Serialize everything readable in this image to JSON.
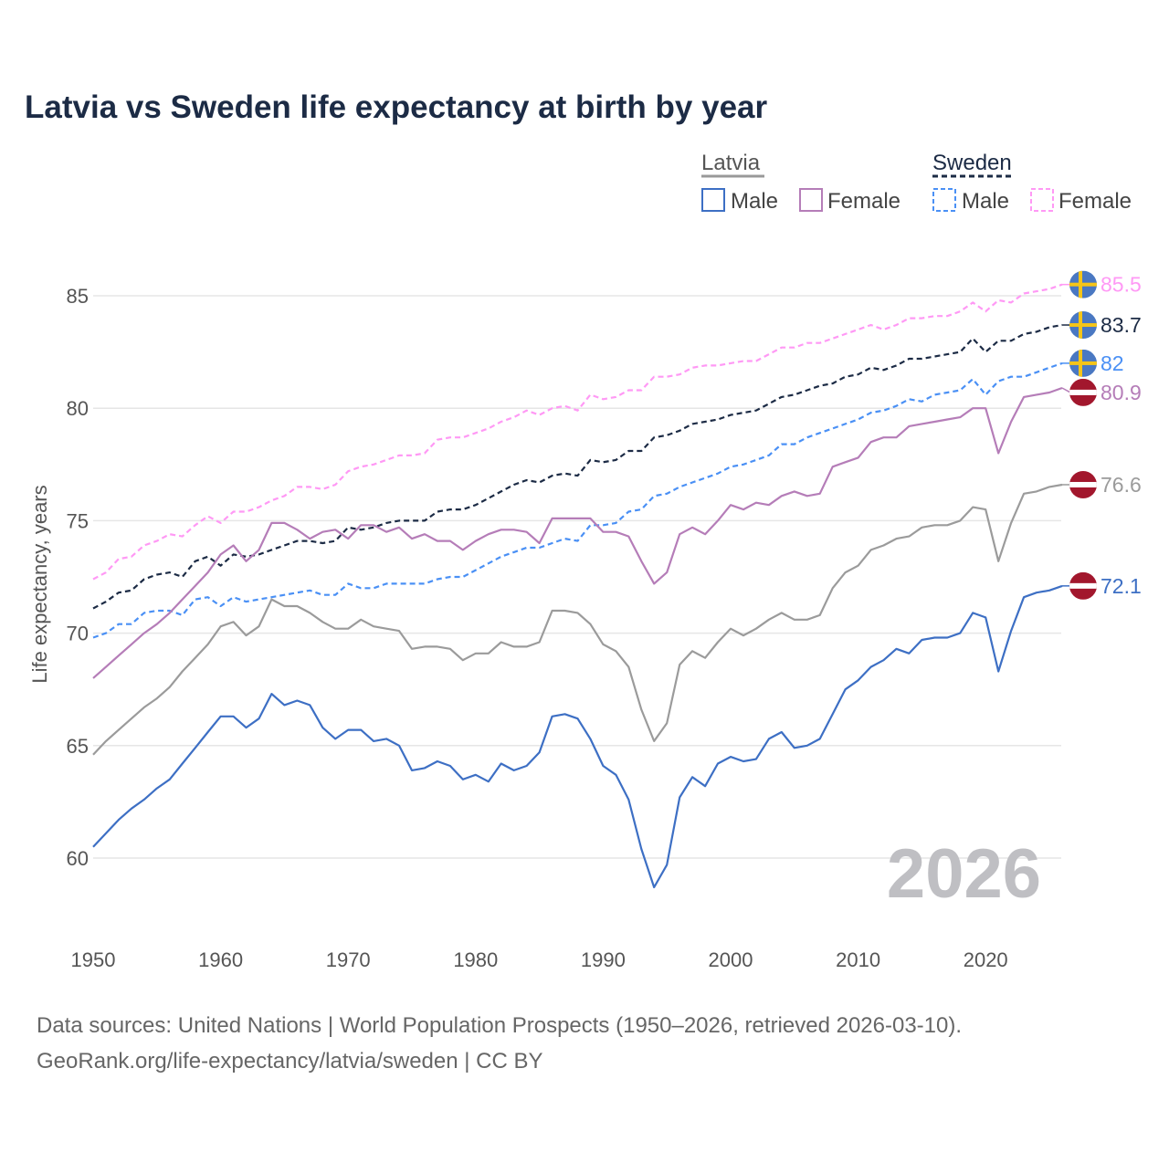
{
  "chart_data": {
    "type": "line",
    "title": "Latvia vs Sweden life expectancy at birth by year",
    "xlabel": "",
    "ylabel": "Life expectancy, years",
    "xlim": [
      1950,
      2026
    ],
    "ylim": [
      58,
      86.5
    ],
    "x_ticks": [
      1950,
      1960,
      1970,
      1980,
      1990,
      2000,
      2010,
      2020
    ],
    "y_ticks": [
      60,
      65,
      70,
      75,
      80,
      85
    ],
    "grid": true,
    "legend_placement": "top-right",
    "legend": {
      "groups": [
        {
          "name": "Latvia",
          "items": [
            "Male",
            "Female"
          ]
        },
        {
          "name": "Sweden",
          "items": [
            "Male",
            "Female"
          ]
        }
      ]
    },
    "watermark_year": "2026",
    "x_start": 1950,
    "series": [
      {
        "name": "Sweden Female",
        "country": "Sweden",
        "color": "#ff99f5",
        "dashed": true,
        "end_label": "85.5",
        "values": [
          72.4,
          72.7,
          73.3,
          73.4,
          73.9,
          74.1,
          74.4,
          74.3,
          74.8,
          75.2,
          74.9,
          75.4,
          75.4,
          75.6,
          75.9,
          76.1,
          76.5,
          76.5,
          76.4,
          76.6,
          77.2,
          77.4,
          77.5,
          77.7,
          77.9,
          77.9,
          78.0,
          78.6,
          78.7,
          78.7,
          78.9,
          79.1,
          79.4,
          79.6,
          79.9,
          79.7,
          80.0,
          80.1,
          79.9,
          80.6,
          80.4,
          80.5,
          80.8,
          80.8,
          81.4,
          81.4,
          81.5,
          81.8,
          81.9,
          81.9,
          82.0,
          82.1,
          82.1,
          82.4,
          82.7,
          82.7,
          82.9,
          82.9,
          83.1,
          83.3,
          83.5,
          83.7,
          83.5,
          83.7,
          84.0,
          84.0,
          84.1,
          84.1,
          84.3,
          84.7,
          84.3,
          84.8,
          84.7,
          85.1,
          85.2,
          85.3,
          85.5
        ]
      },
      {
        "name": "Sweden",
        "country": "Sweden",
        "color": "#1c2b45",
        "dashed": true,
        "end_label": "83.7",
        "values": [
          71.1,
          71.4,
          71.8,
          71.9,
          72.4,
          72.6,
          72.7,
          72.5,
          73.2,
          73.4,
          73.0,
          73.5,
          73.4,
          73.5,
          73.7,
          73.9,
          74.1,
          74.1,
          74.0,
          74.1,
          74.7,
          74.6,
          74.7,
          74.9,
          75.0,
          75.0,
          75.0,
          75.4,
          75.5,
          75.5,
          75.7,
          76.0,
          76.3,
          76.6,
          76.8,
          76.7,
          77.0,
          77.1,
          77.0,
          77.7,
          77.6,
          77.7,
          78.1,
          78.1,
          78.7,
          78.8,
          79.0,
          79.3,
          79.4,
          79.5,
          79.7,
          79.8,
          79.9,
          80.2,
          80.5,
          80.6,
          80.8,
          81.0,
          81.1,
          81.4,
          81.5,
          81.8,
          81.7,
          81.9,
          82.2,
          82.2,
          82.3,
          82.4,
          82.5,
          83.1,
          82.5,
          83.0,
          83.0,
          83.3,
          83.4,
          83.6,
          83.7
        ]
      },
      {
        "name": "Sweden Male",
        "country": "Sweden",
        "color": "#4a90f5",
        "dashed": true,
        "end_label": "82",
        "values": [
          69.8,
          70.0,
          70.4,
          70.4,
          70.9,
          71.0,
          71.0,
          70.8,
          71.5,
          71.6,
          71.2,
          71.6,
          71.4,
          71.5,
          71.6,
          71.7,
          71.8,
          71.9,
          71.7,
          71.7,
          72.2,
          72.0,
          72.0,
          72.2,
          72.2,
          72.2,
          72.2,
          72.4,
          72.5,
          72.5,
          72.8,
          73.1,
          73.4,
          73.6,
          73.8,
          73.8,
          74.0,
          74.2,
          74.1,
          74.8,
          74.8,
          74.9,
          75.4,
          75.5,
          76.1,
          76.2,
          76.5,
          76.7,
          76.9,
          77.1,
          77.4,
          77.5,
          77.7,
          77.9,
          78.4,
          78.4,
          78.7,
          78.9,
          79.1,
          79.3,
          79.5,
          79.8,
          79.9,
          80.1,
          80.4,
          80.3,
          80.6,
          80.7,
          80.8,
          81.3,
          80.6,
          81.2,
          81.4,
          81.4,
          81.6,
          81.8,
          82.0
        ]
      },
      {
        "name": "Latvia Female",
        "country": "Latvia",
        "color": "#b57db8",
        "dashed": false,
        "end_label": "80.9",
        "values": [
          68.0,
          68.5,
          69.0,
          69.5,
          70.0,
          70.4,
          70.9,
          71.5,
          72.1,
          72.7,
          73.5,
          73.9,
          73.2,
          73.7,
          74.9,
          74.9,
          74.6,
          74.2,
          74.5,
          74.6,
          74.2,
          74.8,
          74.8,
          74.5,
          74.7,
          74.2,
          74.4,
          74.1,
          74.1,
          73.7,
          74.1,
          74.4,
          74.6,
          74.6,
          74.5,
          74.0,
          75.1,
          75.1,
          75.1,
          75.1,
          74.5,
          74.5,
          74.3,
          73.2,
          72.2,
          72.7,
          74.4,
          74.7,
          74.4,
          75.0,
          75.7,
          75.5,
          75.8,
          75.7,
          76.1,
          76.3,
          76.1,
          76.2,
          77.4,
          77.6,
          77.8,
          78.5,
          78.7,
          78.7,
          79.2,
          79.3,
          79.4,
          79.5,
          79.6,
          80.0,
          80.0,
          78.0,
          79.4,
          80.5,
          80.6,
          80.7,
          80.9
        ]
      },
      {
        "name": "Latvia",
        "country": "Latvia",
        "color": "#9b9b9b",
        "dashed": false,
        "end_label": "76.6",
        "values": [
          64.6,
          65.2,
          65.7,
          66.2,
          66.7,
          67.1,
          67.6,
          68.3,
          68.9,
          69.5,
          70.3,
          70.5,
          69.9,
          70.3,
          71.5,
          71.2,
          71.2,
          70.9,
          70.5,
          70.2,
          70.2,
          70.6,
          70.3,
          70.2,
          70.1,
          69.3,
          69.4,
          69.4,
          69.3,
          68.8,
          69.1,
          69.1,
          69.6,
          69.4,
          69.4,
          69.6,
          71.0,
          71.0,
          70.9,
          70.4,
          69.5,
          69.2,
          68.5,
          66.6,
          65.2,
          66.0,
          68.6,
          69.2,
          68.9,
          69.6,
          70.2,
          69.9,
          70.2,
          70.6,
          70.9,
          70.6,
          70.6,
          70.8,
          72.0,
          72.7,
          73.0,
          73.7,
          73.9,
          74.2,
          74.3,
          74.7,
          74.8,
          74.8,
          75.0,
          75.6,
          75.5,
          73.2,
          74.9,
          76.2,
          76.3,
          76.5,
          76.6
        ]
      },
      {
        "name": "Latvia Male",
        "country": "Latvia",
        "color": "#3d6fc4",
        "dashed": false,
        "end_label": "72.1",
        "values": [
          60.5,
          61.1,
          61.7,
          62.2,
          62.6,
          63.1,
          63.5,
          64.2,
          64.9,
          65.6,
          66.3,
          66.3,
          65.8,
          66.2,
          67.3,
          66.8,
          67.0,
          66.8,
          65.8,
          65.3,
          65.7,
          65.7,
          65.2,
          65.3,
          65.0,
          63.9,
          64.0,
          64.3,
          64.1,
          63.5,
          63.7,
          63.4,
          64.2,
          63.9,
          64.1,
          64.7,
          66.3,
          66.4,
          66.2,
          65.3,
          64.1,
          63.7,
          62.6,
          60.4,
          58.7,
          59.7,
          62.7,
          63.6,
          63.2,
          64.2,
          64.5,
          64.3,
          64.4,
          65.3,
          65.6,
          64.9,
          65.0,
          65.3,
          66.4,
          67.5,
          67.9,
          68.5,
          68.8,
          69.3,
          69.1,
          69.7,
          69.8,
          69.8,
          70.0,
          70.9,
          70.7,
          68.3,
          70.1,
          71.6,
          71.8,
          71.9,
          72.1
        ]
      }
    ]
  },
  "source": {
    "line1": "Data sources: United Nations | World Population Prospects (1950–2026, retrieved 2026-03-10).",
    "line2": "GeoRank.org/life-expectancy/latvia/sweden | CC BY"
  }
}
